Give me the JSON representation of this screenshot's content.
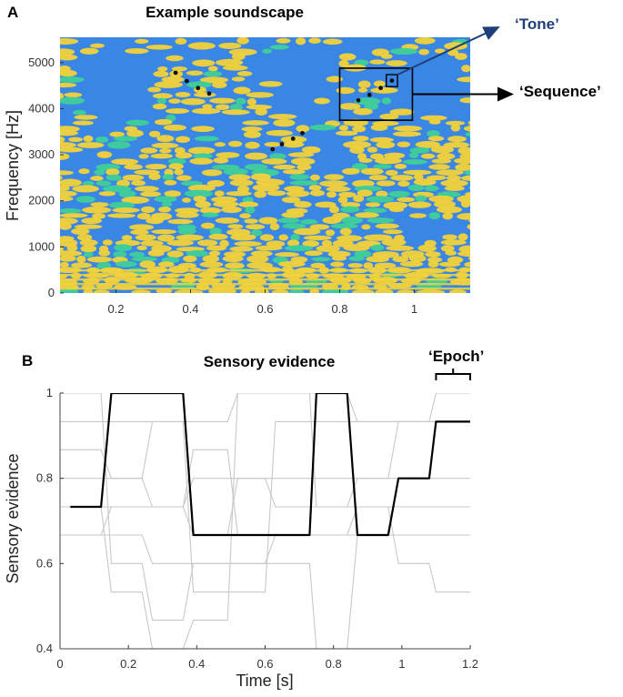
{
  "figure": {
    "panel_a_letter": "A",
    "panel_b_letter": "B",
    "annotations": {
      "tone": "‘Tone’",
      "sequence": "‘Sequence’",
      "epoch": "‘Epoch’"
    },
    "colors": {
      "spectrogram_background": "#3a86e4",
      "spectrogram_energy": "#f2d23a",
      "spectrogram_mid": "#3fcf9a",
      "tone_annotation": "#1f3f7a",
      "main_trace": "#000000",
      "other_traces": "#c8c8c8"
    }
  },
  "chart_data": [
    {
      "type": "heatmap",
      "title": "Example soundscape",
      "xlabel": "",
      "ylabel": "Frequency [Hz]",
      "xlim": [
        0.05,
        1.15
      ],
      "ylim": [
        0,
        5550
      ],
      "xticks": [
        "0.2",
        "0.4",
        "0.6",
        "0.8",
        "1"
      ],
      "yticks": [
        "0",
        "1000",
        "2000",
        "3000",
        "4000",
        "5000"
      ],
      "sequences": [
        {
          "x": [
            0.36,
            0.39,
            0.42,
            0.45
          ],
          "y": [
            4780,
            4600,
            4450,
            4330
          ]
        },
        {
          "x": [
            0.62,
            0.645,
            0.675,
            0.7
          ],
          "y": [
            3120,
            3230,
            3350,
            3470
          ]
        },
        {
          "x": [
            0.85,
            0.88,
            0.91,
            0.94
          ],
          "y": [
            4180,
            4300,
            4450,
            4610
          ]
        }
      ],
      "sequence_box": {
        "x": [
          0.8,
          0.995
        ],
        "y": [
          3750,
          4880
        ]
      },
      "tone_box": {
        "x": [
          0.925,
          0.955
        ],
        "y": [
          4480,
          4740
        ]
      }
    },
    {
      "type": "line",
      "title": "Sensory evidence",
      "xlabel": "Time [s]",
      "ylabel": "Sensory evidence",
      "xlim": [
        0,
        1.2
      ],
      "ylim": [
        0.4,
        1.0
      ],
      "xticks": [
        "0",
        "0.2",
        "0.4",
        "0.6",
        "0.8",
        "1",
        "1.2"
      ],
      "yticks": [
        "0.4",
        "0.6",
        "0.8",
        "1"
      ],
      "epoch_bracket_x": [
        1.1,
        1.2
      ],
      "series": [
        {
          "x": [
            0.03,
            0.12,
            0.15,
            0.36,
            0.39,
            0.73,
            0.75,
            0.84,
            0.87,
            0.96,
            0.99,
            1.08,
            1.1,
            1.2
          ],
          "y": [
            0.733,
            0.733,
            1.0,
            1.0,
            0.667,
            0.667,
            1.0,
            1.0,
            0.667,
            0.667,
            0.8,
            0.8,
            0.933,
            0.933
          ]
        },
        {
          "x": [
            0.0,
            0.12,
            0.15,
            0.24,
            0.27,
            0.36,
            0.39,
            0.55,
            0.58,
            1.2
          ],
          "y": [
            0.867,
            0.867,
            0.8,
            0.8,
            0.733,
            0.733,
            0.8,
            0.8,
            0.8,
            0.8
          ]
        },
        {
          "x": [
            0.0,
            0.12,
            0.15,
            0.36,
            0.39,
            0.49,
            0.52,
            0.84,
            0.87,
            1.2
          ],
          "y": [
            0.667,
            0.667,
            0.733,
            0.733,
            0.867,
            0.867,
            0.667,
            0.667,
            0.733,
            0.733
          ]
        },
        {
          "x": [
            0.0,
            0.12,
            0.15,
            0.24,
            0.27,
            0.36,
            0.39,
            0.6,
            0.63,
            1.2
          ],
          "y": [
            1.0,
            1.0,
            0.6,
            0.6,
            0.467,
            0.467,
            0.6,
            0.6,
            0.667,
            0.667
          ]
        },
        {
          "x": [
            0.0,
            0.24,
            0.27,
            0.36,
            0.39,
            0.6,
            0.63,
            1.2
          ],
          "y": [
            0.8,
            0.8,
            0.933,
            0.933,
            0.533,
            0.533,
            0.933,
            0.933
          ]
        },
        {
          "x": [
            0.0,
            0.12,
            0.15,
            0.24,
            0.27,
            0.36,
            0.39,
            0.49,
            0.52,
            0.73,
            0.75,
            0.84,
            0.87,
            0.96,
            0.99,
            1.2
          ],
          "y": [
            0.733,
            0.733,
            0.533,
            0.533,
            0.4,
            0.4,
            0.467,
            0.467,
            1.0,
            1.0,
            0.733,
            0.733,
            0.8,
            0.8,
            0.933,
            0.933
          ]
        },
        {
          "x": [
            0.0,
            0.36,
            0.39,
            0.49,
            0.52,
            0.6,
            0.63,
            0.96,
            0.99,
            1.08,
            1.1,
            1.2
          ],
          "y": [
            0.733,
            0.733,
            0.667,
            0.667,
            0.8,
            0.8,
            0.733,
            0.733,
            0.6,
            0.6,
            0.533,
            0.533
          ]
        },
        {
          "x": [
            0.0,
            0.24,
            0.27,
            0.73,
            0.75,
            0.84,
            0.87,
            1.2
          ],
          "y": [
            0.667,
            0.667,
            0.6,
            0.6,
            0.4,
            0.4,
            0.667,
            0.667
          ]
        },
        {
          "x": [
            0.0,
            0.49,
            0.52,
            0.84,
            0.87,
            0.96,
            0.99,
            1.08,
            1.1,
            1.2
          ],
          "y": [
            0.933,
            0.933,
            1.0,
            1.0,
            0.933,
            0.933,
            0.933,
            0.933,
            1.0,
            1.0
          ]
        }
      ]
    }
  ]
}
